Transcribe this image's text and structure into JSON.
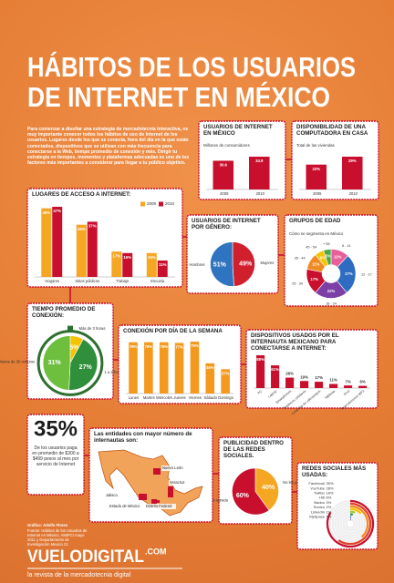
{
  "header": {
    "title_lines": [
      "HÁBITOS DE LOS USUARIOS",
      "DE INTERNET EN MÉXICO"
    ],
    "intro": "Para comenzar a diseñar una estrategia de mercadotecnia interactiva, es muy importante conocer todos los hábitos de uso de Internet de los usuarios. Lugares desde los que se conecta, hora del día en la que están conectados, dispositivos que se utilizan con más frecuencia para conectarse a la Web, tiempo promedio de conexión y más. Dirigir tu estrategia en tiempos, momentos y plataformas adecuadas es uno de los factores más importantes a considerar para llegar a tu público objetivo."
  },
  "chart_data": [
    {
      "type": "bar",
      "title": "USUARIOS DE INTERNET EN MÉXICO",
      "subtitle": "Millones de consumidores",
      "categories": [
        "2009",
        "2010"
      ],
      "values": [
        30.6,
        34.9
      ],
      "color": "#c8102e"
    },
    {
      "type": "bar",
      "title": "DISPONIBILIDAD DE UNA COMPUTADORA EN CASA",
      "subtitle": "Total de las viviendas",
      "categories": [
        "2005",
        "2010"
      ],
      "values": [
        22,
        29
      ],
      "value_labels": [
        "22%",
        "29%"
      ],
      "color": "#c8102e"
    },
    {
      "type": "bar",
      "title": "LUGARES DE ACCESO A INTERNET:",
      "categories": [
        "Hogares",
        "Sitios públicos",
        "Trabajo",
        "Escuela"
      ],
      "series": [
        {
          "name": "2009",
          "color": "#f5a623",
          "values": [
            46,
            35,
            17,
            16
          ],
          "value_labels": [
            "46%",
            "35%",
            "17%",
            "16%"
          ]
        },
        {
          "name": "2010",
          "color": "#c8102e",
          "values": [
            47,
            37,
            16,
            11
          ],
          "value_labels": [
            "47%",
            "37%",
            "16%",
            "11%"
          ]
        }
      ]
    },
    {
      "type": "pie",
      "title": "USUARIOS DE INTERNET POR GÉNERO:",
      "categories": [
        "Mujeres",
        "Hombres"
      ],
      "values": [
        49,
        51
      ],
      "value_labels": [
        "49%",
        "51%"
      ],
      "colors": [
        "#d0202e",
        "#2f74c0"
      ]
    },
    {
      "type": "pie",
      "title": "GRUPOS DE EDAD",
      "subtitle": "Cómo se segmenta en México",
      "categories": [
        "6 - 11",
        "12 - 17",
        "18 - 24",
        "25 - 34",
        "35 - 44",
        "45 - 54",
        "+ 55"
      ],
      "values": [
        12,
        27,
        22,
        17,
        11,
        6,
        5
      ],
      "value_labels": [
        "12%",
        "27%",
        "22%",
        "17%",
        "11%",
        "6%",
        "5%"
      ],
      "colors": [
        "#e85d9a",
        "#2d6cc0",
        "#7b3fa6",
        "#c8102e",
        "#f08a24",
        "#f5c400",
        "#4aa84a"
      ]
    },
    {
      "type": "pie",
      "title": "TIEMPO PROMEDIO DE CONEXIÓN:",
      "categories": [
        "Más de 3 horas",
        "1 a 2 horas",
        "Menos de 30 minutos"
      ],
      "values": [
        5,
        27,
        31
      ],
      "value_labels": [
        "5%",
        "27%",
        "31%"
      ],
      "colors": [
        "#f5c400",
        "#2f8f3a",
        "#6fbf3f"
      ]
    },
    {
      "type": "bar",
      "title": "CONEXIÓN POR DÍA DE LA SEMANA",
      "categories": [
        "Lunes",
        "Martes",
        "Miércoles",
        "Jueves",
        "Viernes",
        "Sábado",
        "Domingo"
      ],
      "values": [
        78,
        78,
        78,
        77,
        79,
        46,
        37
      ],
      "value_labels": [
        "78%",
        "78%",
        "78%",
        "77%",
        "79%",
        "46%",
        "37%"
      ],
      "color": "#f39a1e"
    },
    {
      "type": "bar",
      "title": "DISPOSITIVOS USADOS POR EL INTERNAUTA MEXICANO PARA CONECTARSE A INTERNET:",
      "categories": [
        "PC",
        "Laptop",
        "Smartphones",
        "Teléfonos celulares",
        "Consolas de videojuegos",
        "Tabletas",
        "iPod",
        "Reproductores MP3"
      ],
      "values": [
        88,
        61,
        28,
        19,
        17,
        11,
        7,
        6
      ],
      "value_labels": [
        "88%",
        "61%",
        "28%",
        "19%",
        "17%",
        "11%",
        "7%",
        "6%"
      ],
      "color": "#c8102e"
    },
    {
      "type": "pie",
      "title": "PUBLICIDAD DENTRO DE LAS REDES SOCIALES.",
      "categories": [
        "No les gusta",
        "Les agrada"
      ],
      "values": [
        40,
        60
      ],
      "value_labels": [
        "40%",
        "60%"
      ],
      "colors": [
        "#f5a623",
        "#c8102e"
      ]
    },
    {
      "type": "radial",
      "title": "REDES SOCIALES MÁS USADAS:",
      "categories": [
        "Facebook",
        "YouTube",
        "Twitter",
        "Hi5",
        "Badoo",
        "Sonico",
        "LinkedIn",
        "MySpace"
      ],
      "values": [
        39,
        28,
        18,
        6,
        3,
        2,
        1,
        1
      ],
      "value_labels": [
        "39%",
        "28%",
        "18%",
        "6%",
        "3%",
        "2%",
        "1%",
        "1%"
      ],
      "colors": [
        "#c8102e",
        "#e0422a",
        "#f08a24",
        "#f5c400",
        "#9acd32",
        "#2f8f3a",
        "#2f74c0",
        "#7b3fa6"
      ]
    }
  ],
  "stat": {
    "value": "35%",
    "text": "De los usuarios paga en promedio de $300 a $499 pesos al mes por servicio de Internet"
  },
  "map": {
    "title": "Las entidades con mayor número de internautas son:",
    "states": [
      "Nuevo León",
      "Veracruz",
      "Jalisco",
      "Estado de México",
      "Distrito Federal"
    ]
  },
  "credits": {
    "graphic": "Gráfico: Adolfo Flores",
    "source": "Fuente: Hábitos de los Usuarios de Internet en México, AMIPCI mayo 2011 y Departamento de Investigación Mexico 21"
  },
  "footer": {
    "brand": "VUELODIGITAL",
    "domain": ".COM",
    "tagline": "la revista de la mercadotecnia digital"
  }
}
